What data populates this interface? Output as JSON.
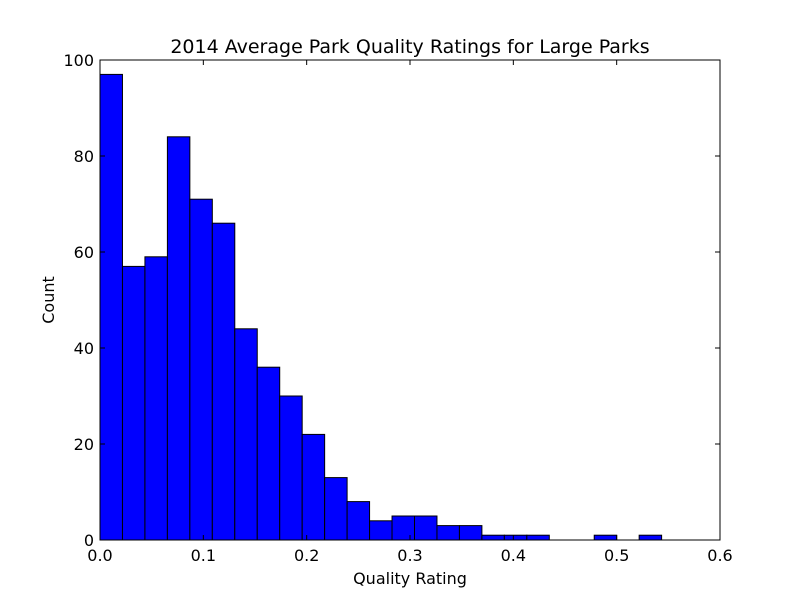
{
  "chart_data": {
    "type": "bar",
    "title": "2014 Average Park Quality Ratings for Large Parks",
    "xlabel": "Quality Rating",
    "ylabel": "Count",
    "xlim": [
      0.0,
      0.6
    ],
    "ylim": [
      0,
      100
    ],
    "x_ticks": [
      "0.0",
      "0.1",
      "0.2",
      "0.3",
      "0.4",
      "0.5",
      "0.6"
    ],
    "y_ticks": [
      "0",
      "20",
      "40",
      "60",
      "80",
      "100"
    ],
    "grid": false,
    "bin_start": 0.0,
    "bin_width": 0.02174,
    "values": [
      97,
      57,
      59,
      84,
      71,
      66,
      44,
      36,
      30,
      22,
      13,
      8,
      4,
      5,
      5,
      3,
      3,
      1,
      1,
      1,
      0,
      0,
      1,
      0,
      1
    ],
    "bar_color": "#0000ff",
    "edge_color": "#000000"
  }
}
